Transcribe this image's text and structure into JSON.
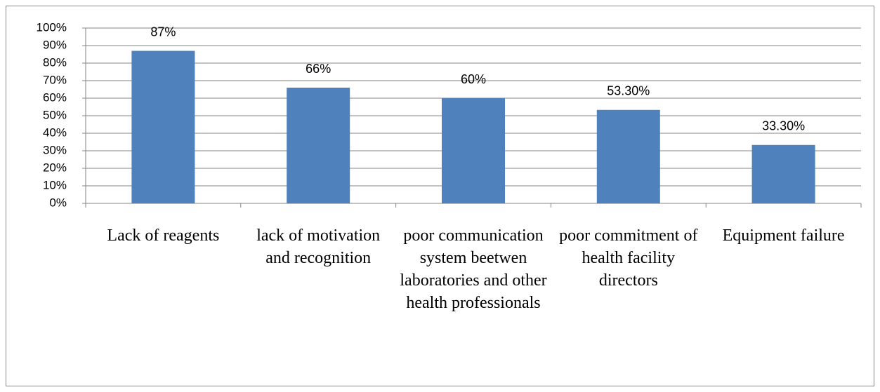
{
  "chart_data": {
    "type": "bar",
    "categories": [
      "Lack of reagents",
      "lack of motivation and recognition",
      "poor communication system beetwen laboratories and other health professionals",
      "poor commitment of health facility directors",
      "Equipment failure"
    ],
    "values": [
      87,
      66,
      60,
      53.3,
      33.3
    ],
    "value_labels": [
      "87%",
      "66%",
      "60%",
      "53.30%",
      "33.30%"
    ],
    "color": "#4f81bd",
    "ylim": [
      0,
      100
    ],
    "yticks": [
      {
        "value": 0,
        "label": "0%"
      },
      {
        "value": 10,
        "label": "10%"
      },
      {
        "value": 20,
        "label": "20%"
      },
      {
        "value": 30,
        "label": "30%"
      },
      {
        "value": 40,
        "label": "40%"
      },
      {
        "value": 50,
        "label": "50%"
      },
      {
        "value": 60,
        "label": "60%"
      },
      {
        "value": 70,
        "label": "70%"
      },
      {
        "value": 80,
        "label": "80%"
      },
      {
        "value": 90,
        "label": "90%"
      },
      {
        "value": 100,
        "label": "100%"
      }
    ],
    "grid": true
  }
}
